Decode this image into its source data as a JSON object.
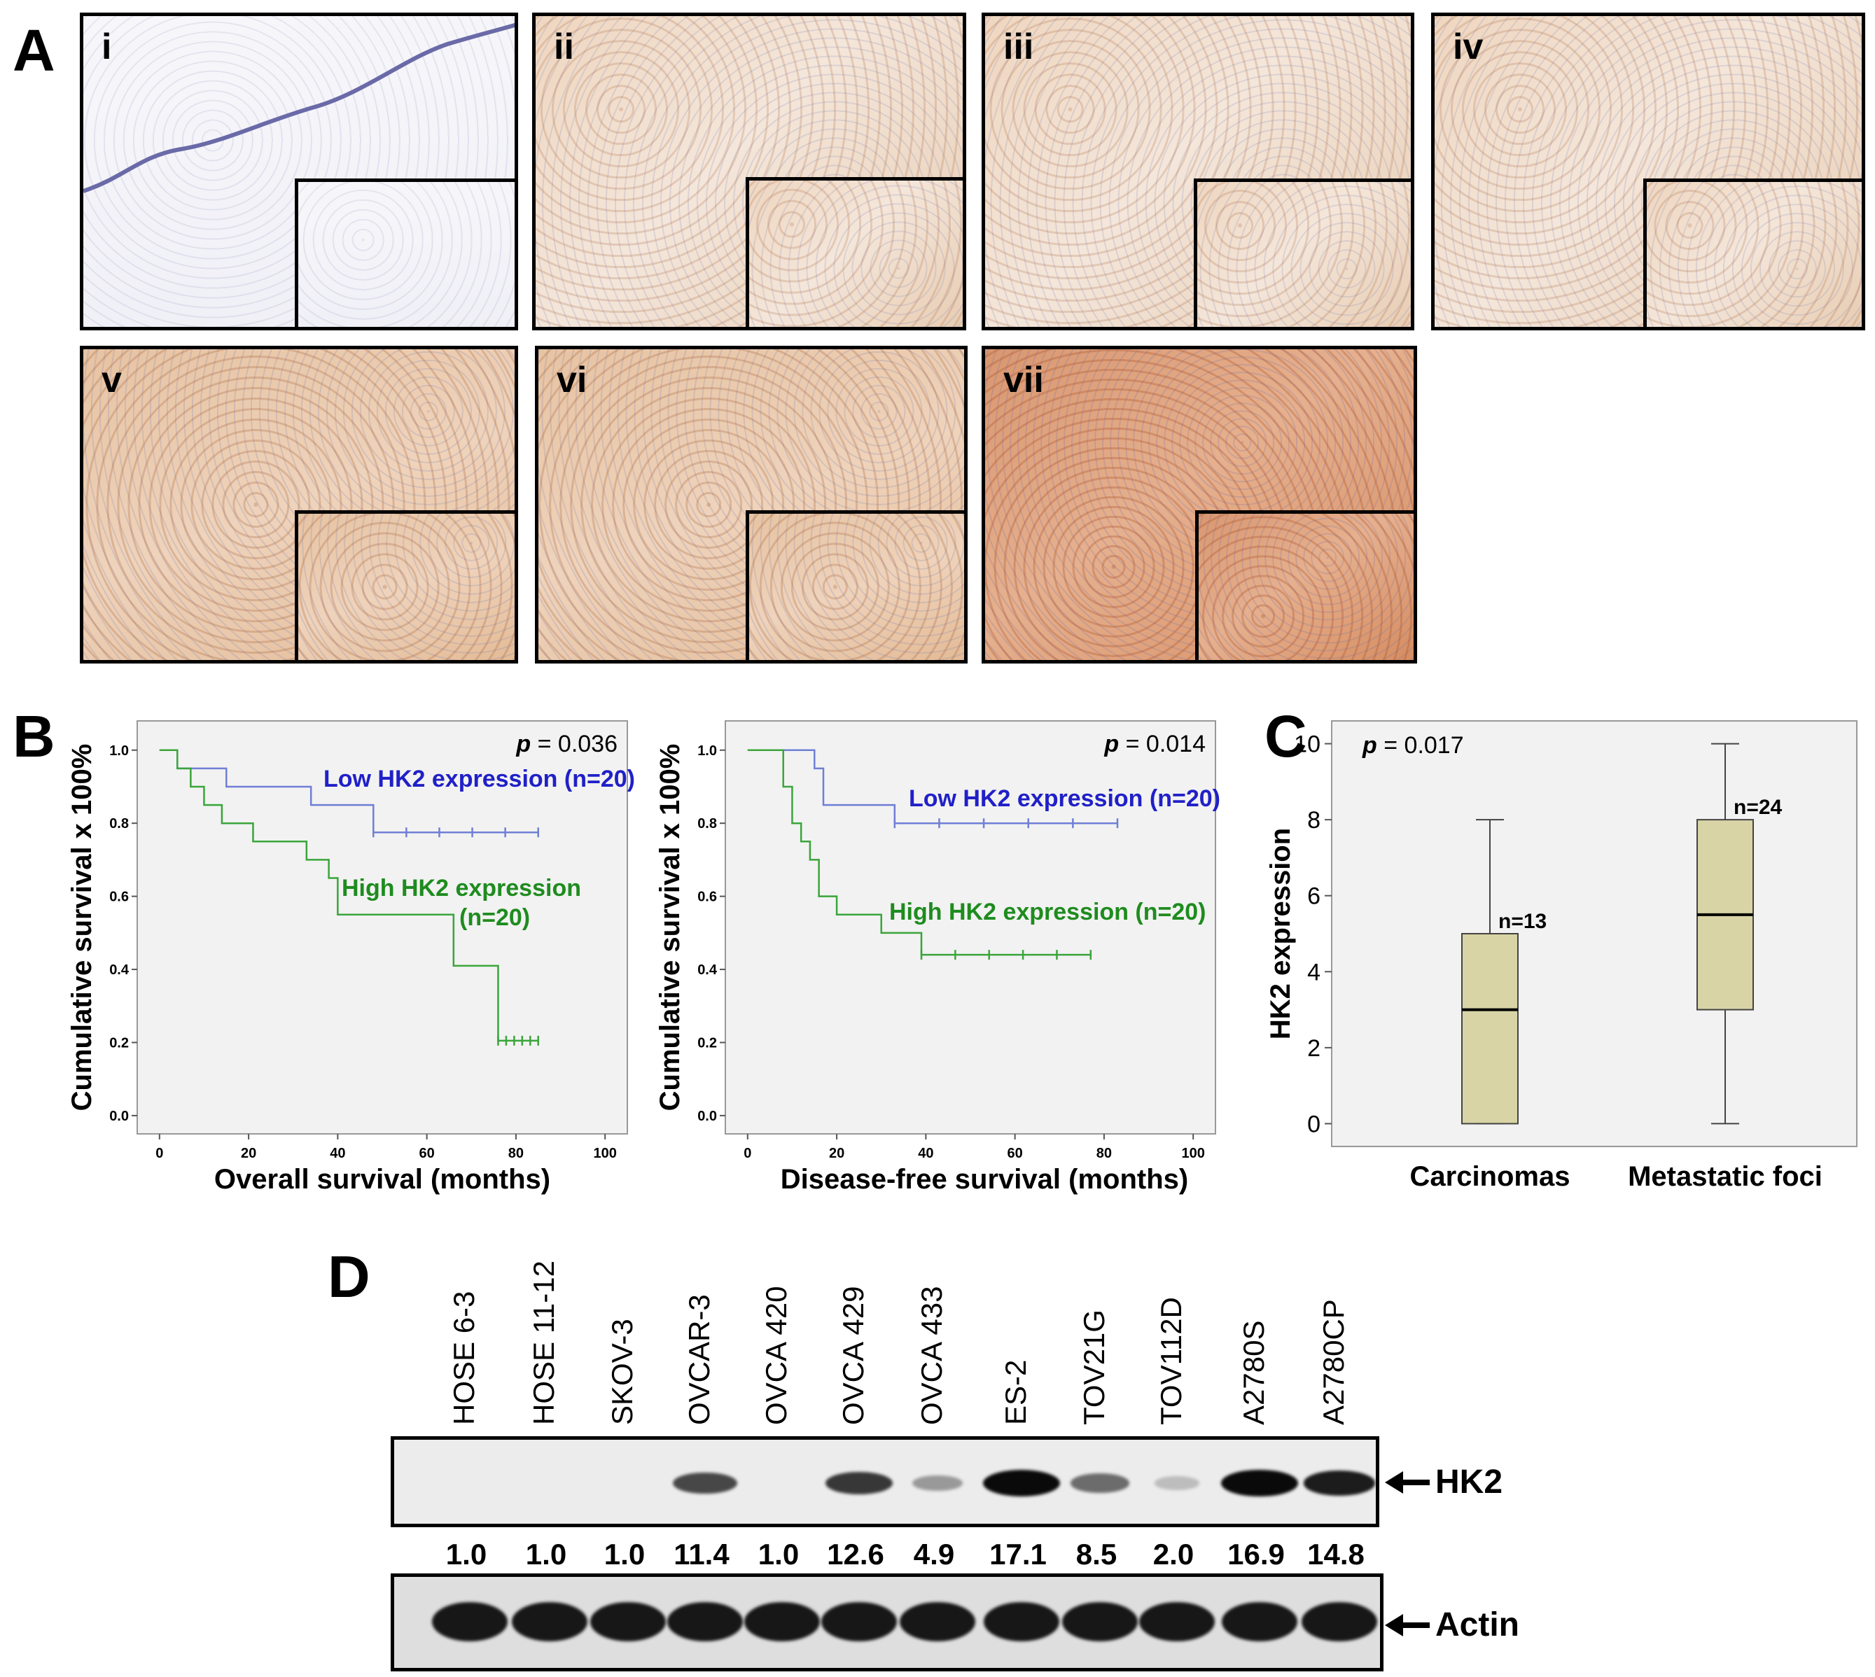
{
  "panel_a": {
    "letter": "A",
    "images": [
      {
        "label": "i"
      },
      {
        "label": "ii"
      },
      {
        "label": "iii"
      },
      {
        "label": "iv"
      },
      {
        "label": "v"
      },
      {
        "label": "vi"
      },
      {
        "label": "vii"
      }
    ]
  },
  "panel_b": {
    "letter": "B",
    "ylabel": "Cumulative survival x 100%",
    "charts": [
      {
        "xlabel": "Overall survival (months)",
        "p_prefix": "p",
        "p_value": " = 0.036",
        "low_label": "Low HK2 expression (n=20)",
        "high_label_1": "High HK2 expression",
        "high_label_2": "(n=20)"
      },
      {
        "xlabel": "Disease-free survival (months)",
        "p_prefix": "p",
        "p_value": " = 0.014",
        "low_label": "Low HK2 expression (n=20)",
        "high_label_1": "High HK2 expression (n=20)",
        "high_label_2": ""
      }
    ],
    "x_ticks": [
      "0",
      "20",
      "40",
      "60",
      "80",
      "100"
    ],
    "y_ticks": [
      "0.0",
      "0.2",
      "0.4",
      "0.6",
      "0.8",
      "1.0"
    ]
  },
  "panel_c": {
    "letter": "C",
    "p_prefix": "p",
    "p_value": " = 0.017",
    "ylabel": "HK2 expression",
    "y_ticks": [
      "0",
      "2",
      "4",
      "6",
      "8",
      "10"
    ]
  },
  "panel_d": {
    "letter": "D",
    "lanes": [
      "HOSE 6-3",
      "HOSE 11-12",
      "SKOV-3",
      "OVCAR-3",
      "OVCA 420",
      "OVCA 429",
      "OVCA 433",
      "ES-2",
      "TOV21G",
      "TOV112D",
      "A2780S",
      "A2780CP"
    ],
    "ratios": [
      "1.0",
      "1.0",
      "1.0",
      "11.4",
      "1.0",
      "12.6",
      "4.9",
      "17.1",
      "8.5",
      "2.0",
      "16.9",
      "14.8"
    ],
    "hk2_label": "HK2",
    "actin_label": "Actin"
  },
  "chart_data": [
    {
      "type": "line",
      "xlabel": "Overall survival (months)",
      "ylabel": "Cumulative survival x 100%",
      "xlim": [
        0,
        100
      ],
      "ylim": [
        0.0,
        1.0
      ],
      "series": [
        {
          "name": "Low HK2 expression (n=20)",
          "color": "#6f7fd6",
          "x": [
            0,
            4,
            15,
            34,
            48,
            85
          ],
          "y": [
            1.0,
            0.95,
            0.9,
            0.85,
            0.775,
            0.775
          ]
        },
        {
          "name": "High HK2 expression (n=20)",
          "color": "#3aa53a",
          "x": [
            0,
            4,
            7,
            10,
            14,
            21,
            33,
            38,
            40,
            66,
            76,
            85
          ],
          "y": [
            1.0,
            0.95,
            0.9,
            0.85,
            0.8,
            0.75,
            0.7,
            0.65,
            0.55,
            0.41,
            0.205,
            0.205
          ]
        }
      ],
      "annotation": "p = 0.036"
    },
    {
      "type": "line",
      "xlabel": "Disease-free survival (months)",
      "ylabel": "Cumulative survival x 100%",
      "xlim": [
        0,
        100
      ],
      "ylim": [
        0.0,
        1.0
      ],
      "series": [
        {
          "name": "Low HK2 expression (n=20)",
          "color": "#6f7fd6",
          "x": [
            0,
            15,
            17,
            33,
            83
          ],
          "y": [
            1.0,
            0.95,
            0.85,
            0.8,
            0.8
          ]
        },
        {
          "name": "High HK2 expression (n=20)",
          "color": "#3aa53a",
          "x": [
            0,
            8,
            10,
            12,
            14,
            16,
            20,
            30,
            39,
            77
          ],
          "y": [
            1.0,
            0.9,
            0.8,
            0.75,
            0.7,
            0.6,
            0.55,
            0.5,
            0.44,
            0.44
          ]
        }
      ],
      "annotation": "p = 0.014"
    },
    {
      "type": "box",
      "ylabel": "HK2 expression",
      "ylim": [
        0,
        10
      ],
      "categories": [
        "Carcinomas",
        "Metastatic foci"
      ],
      "boxes": [
        {
          "min": 0,
          "q1": 0,
          "median": 3,
          "q3": 5,
          "max": 8,
          "n_label": "n=13"
        },
        {
          "min": 0,
          "q1": 3,
          "median": 5.5,
          "q3": 8,
          "max": 10,
          "n_label": "n=24"
        }
      ],
      "box_color": "#d9d4a6",
      "annotation": "p = 0.017"
    }
  ],
  "colors": {
    "low": "#6f7fd6",
    "low_text": "#2020c8",
    "high": "#3aa53a",
    "high_text": "#1e8c1e",
    "plot_bg": "#f2f2f2"
  }
}
